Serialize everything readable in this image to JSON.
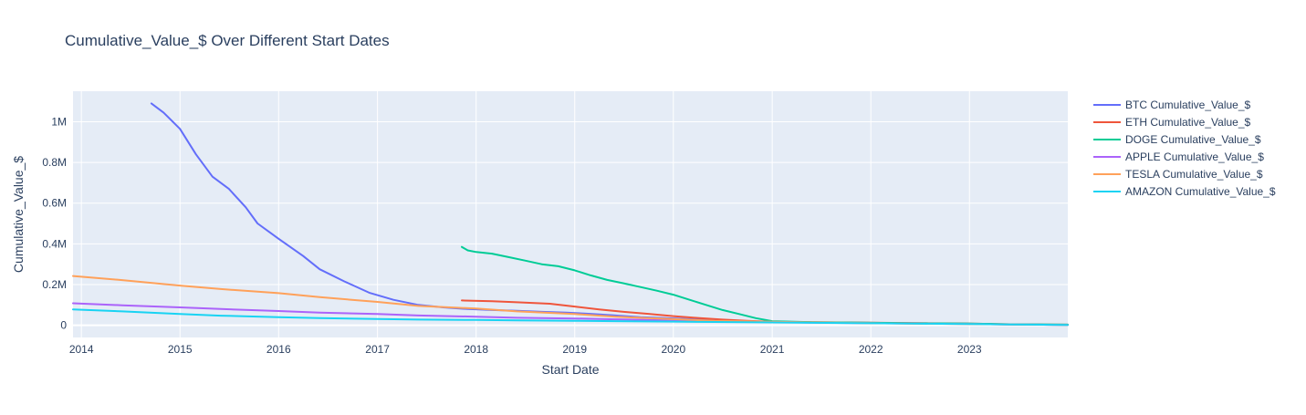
{
  "chart_data": {
    "type": "line",
    "title": "Cumulative_Value_$ Over Different Start Dates",
    "xlabel": "Start Date",
    "ylabel": "Cumulative_Value_$",
    "xlim": [
      "2013-12-01",
      "2023-12-31"
    ],
    "ylim": [
      -60000,
      1150000
    ],
    "x_ticks": [
      {
        "label": "2014",
        "value": "2014-01-01"
      },
      {
        "label": "2015",
        "value": "2015-01-01"
      },
      {
        "label": "2016",
        "value": "2016-01-01"
      },
      {
        "label": "2017",
        "value": "2017-01-01"
      },
      {
        "label": "2018",
        "value": "2018-01-01"
      },
      {
        "label": "2019",
        "value": "2019-01-01"
      },
      {
        "label": "2020",
        "value": "2020-01-01"
      },
      {
        "label": "2021",
        "value": "2021-01-01"
      },
      {
        "label": "2022",
        "value": "2022-01-01"
      },
      {
        "label": "2023",
        "value": "2023-01-01"
      }
    ],
    "y_ticks": [
      {
        "label": "0",
        "value": 0
      },
      {
        "label": "0.2M",
        "value": 200000
      },
      {
        "label": "0.4M",
        "value": 400000
      },
      {
        "label": "0.6M",
        "value": 600000
      },
      {
        "label": "0.8M",
        "value": 800000
      },
      {
        "label": "1M",
        "value": 1000000
      }
    ],
    "grid": true,
    "legend_position": "right",
    "plot_background": "#e5ecf6",
    "series": [
      {
        "name": "BTC Cumulative_Value_$",
        "color": "#636efa",
        "x": [
          "2014-09-17",
          "2014-11-01",
          "2015-01-01",
          "2015-03-01",
          "2015-05-01",
          "2015-07-01",
          "2015-09-01",
          "2015-10-15",
          "2016-01-01",
          "2016-04-01",
          "2016-06-01",
          "2016-09-01",
          "2016-12-01",
          "2017-03-01",
          "2017-06-01",
          "2017-09-01",
          "2017-12-01",
          "2018-03-01",
          "2018-06-01",
          "2018-09-01",
          "2018-12-01",
          "2019-03-01",
          "2019-06-01",
          "2019-09-01",
          "2019-12-01",
          "2020-03-01",
          "2020-06-01",
          "2020-09-01",
          "2020-12-01",
          "2021-03-01",
          "2021-06-01",
          "2021-09-01",
          "2021-12-01",
          "2022-03-01",
          "2022-06-01",
          "2022-09-01",
          "2022-12-01",
          "2023-03-01",
          "2023-06-01",
          "2023-09-01",
          "2023-12-31"
        ],
        "y": [
          1090000,
          1045000,
          965000,
          840000,
          730000,
          670000,
          580000,
          500000,
          425000,
          340000,
          275000,
          215000,
          160000,
          125000,
          100000,
          88000,
          80000,
          75000,
          71000,
          66000,
          62000,
          56000,
          48000,
          40000,
          35000,
          30000,
          26000,
          22000,
          18000,
          16000,
          14000,
          13000,
          12000,
          11000,
          10000,
          9000,
          8000,
          6000,
          4000,
          3000,
          2000
        ]
      },
      {
        "name": "ETH Cumulative_Value_$",
        "color": "#ef553b",
        "x": [
          "2017-11-09",
          "2018-03-01",
          "2018-06-01",
          "2018-10-01",
          "2019-01-01",
          "2019-04-01",
          "2019-07-01",
          "2019-10-01",
          "2020-01-01",
          "2020-04-01",
          "2020-07-01",
          "2020-10-01",
          "2021-01-01",
          "2021-06-01",
          "2022-01-01",
          "2022-06-01",
          "2023-01-01",
          "2023-06-01",
          "2023-12-31"
        ],
        "y": [
          122000,
          118000,
          113000,
          106000,
          92000,
          78000,
          66000,
          56000,
          45000,
          36000,
          28000,
          22000,
          17000,
          15000,
          13000,
          11000,
          8000,
          5000,
          3000
        ]
      },
      {
        "name": "DOGE Cumulative_Value_$",
        "color": "#00cc96",
        "x": [
          "2017-11-09",
          "2017-12-01",
          "2018-01-01",
          "2018-03-01",
          "2018-05-01",
          "2018-07-01",
          "2018-09-01",
          "2018-11-01",
          "2019-01-01",
          "2019-03-01",
          "2019-05-01",
          "2019-07-01",
          "2019-09-01",
          "2019-11-01",
          "2020-01-01",
          "2020-03-01",
          "2020-05-01",
          "2020-07-01",
          "2020-09-01",
          "2020-11-01",
          "2021-01-01",
          "2021-06-01",
          "2022-01-01",
          "2022-06-01",
          "2023-01-01",
          "2023-06-01",
          "2023-12-31"
        ],
        "y": [
          385000,
          368000,
          360000,
          352000,
          335000,
          318000,
          300000,
          290000,
          270000,
          245000,
          223000,
          206000,
          188000,
          170000,
          150000,
          125000,
          100000,
          75000,
          55000,
          35000,
          20000,
          15000,
          12000,
          10000,
          8000,
          5000,
          3000
        ]
      },
      {
        "name": "APPLE Cumulative_Value_$",
        "color": "#ab63fa",
        "x": [
          "2013-12-01",
          "2014-06-01",
          "2015-01-01",
          "2015-06-01",
          "2016-01-01",
          "2016-06-01",
          "2017-01-01",
          "2017-06-01",
          "2018-01-01",
          "2018-06-01",
          "2019-01-01",
          "2019-06-01",
          "2020-01-01",
          "2020-06-01",
          "2021-01-01",
          "2021-06-01",
          "2022-01-01",
          "2022-06-01",
          "2023-01-01",
          "2023-06-01",
          "2023-12-31"
        ],
        "y": [
          108000,
          98000,
          88000,
          80000,
          70000,
          62000,
          55000,
          48000,
          42000,
          37000,
          33000,
          29000,
          24000,
          20000,
          16000,
          13000,
          10000,
          8000,
          6000,
          4000,
          2000
        ]
      },
      {
        "name": "TESLA Cumulative_Value_$",
        "color": "#ffa15a",
        "x": [
          "2013-12-01",
          "2014-06-01",
          "2015-01-01",
          "2015-06-01",
          "2016-01-01",
          "2016-06-01",
          "2017-01-01",
          "2017-06-01",
          "2018-01-01",
          "2018-06-01",
          "2019-01-01",
          "2019-06-01",
          "2020-01-01",
          "2020-06-01",
          "2021-01-01",
          "2021-06-01",
          "2022-01-01",
          "2022-06-01",
          "2023-01-01",
          "2023-06-01",
          "2023-12-31"
        ],
        "y": [
          242000,
          222000,
          195000,
          178000,
          158000,
          138000,
          115000,
          95000,
          82000,
          68000,
          55000,
          42000,
          30000,
          22000,
          17000,
          14000,
          11000,
          8000,
          6000,
          4000,
          2000
        ]
      },
      {
        "name": "AMAZON Cumulative_Value_$",
        "color": "#19d3f3",
        "x": [
          "2013-12-01",
          "2014-06-01",
          "2015-01-01",
          "2015-06-01",
          "2016-01-01",
          "2016-06-01",
          "2017-01-01",
          "2017-06-01",
          "2018-01-01",
          "2018-06-01",
          "2019-01-01",
          "2019-06-01",
          "2020-01-01",
          "2020-06-01",
          "2021-01-01",
          "2021-06-01",
          "2022-01-01",
          "2022-06-01",
          "2023-01-01",
          "2023-06-01",
          "2023-12-31"
        ],
        "y": [
          78000,
          68000,
          55000,
          47000,
          40000,
          35000,
          31000,
          28000,
          26000,
          24000,
          22000,
          20000,
          18000,
          16000,
          14000,
          12000,
          10000,
          8000,
          6000,
          4000,
          2000
        ]
      }
    ]
  }
}
